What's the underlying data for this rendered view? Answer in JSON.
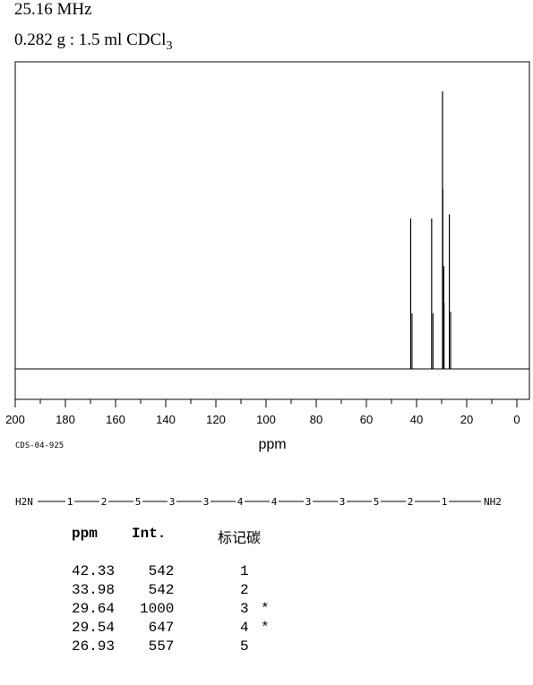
{
  "header": {
    "frequency": "25.16 MHz",
    "sample_prefix": "0.282 g : 1.5 ml CDCl",
    "sample_subscript": "3"
  },
  "spectrum_code": "CDS-04-925",
  "chart_data": {
    "type": "line",
    "xlabel": "ppm",
    "xlim": [
      200,
      0
    ],
    "x_reversed": true,
    "x_ticks": [
      200,
      180,
      160,
      140,
      120,
      100,
      80,
      60,
      40,
      20,
      0
    ],
    "peaks": [
      {
        "ppm": 42.33,
        "intensity": 542
      },
      {
        "ppm": 33.98,
        "intensity": 542
      },
      {
        "ppm": 29.64,
        "intensity": 1000
      },
      {
        "ppm": 29.54,
        "intensity": 647
      },
      {
        "ppm": 26.93,
        "intensity": 557
      }
    ],
    "legend": false,
    "grid": false
  },
  "structure": {
    "left_end": "H2N",
    "right_end": "NH2",
    "chain": [
      "1",
      "2",
      "5",
      "3",
      "3",
      "4",
      "4",
      "3",
      "3",
      "5",
      "2",
      "1"
    ]
  },
  "table": {
    "headers": {
      "ppm": "ppm",
      "int": "Int.",
      "assign": "标记碳"
    },
    "rows": [
      {
        "ppm": "42.33",
        "int": "542",
        "assign": "1",
        "mark": ""
      },
      {
        "ppm": "33.98",
        "int": "542",
        "assign": "2",
        "mark": ""
      },
      {
        "ppm": "29.64",
        "int": "1000",
        "assign": "3",
        "mark": "*"
      },
      {
        "ppm": "29.54",
        "int": "647",
        "assign": "4",
        "mark": "*"
      },
      {
        "ppm": "26.93",
        "int": "557",
        "assign": "5",
        "mark": ""
      }
    ]
  }
}
